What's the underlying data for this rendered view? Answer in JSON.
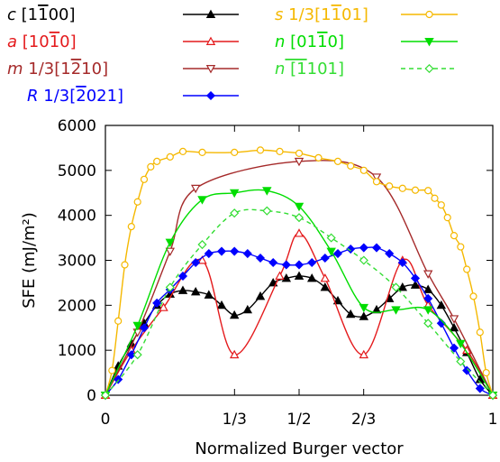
{
  "chart_data": {
    "type": "line",
    "xlabel": "Normalized Burger vector",
    "ylabel": "SFE (mJ/m²)",
    "xlim": [
      0,
      1
    ],
    "ylim": [
      0,
      6000
    ],
    "x_ticks": [
      0,
      0.3333,
      0.5,
      0.6667,
      1
    ],
    "x_tick_labels": [
      "0",
      "1/3",
      "1/2",
      "2/3",
      "1"
    ],
    "y_ticks": [
      0,
      1000,
      2000,
      3000,
      4000,
      5000,
      6000
    ],
    "y_tick_labels": [
      "0",
      "1000",
      "2000",
      "3000",
      "4000",
      "5000",
      "6000"
    ],
    "grid": false,
    "legend_position": "top",
    "series": [
      {
        "name": "c [1Ġ00]",
        "label_parts": [
          "c",
          " [1",
          "1",
          "00]"
        ],
        "overbar_index": 2,
        "color": "#000000",
        "marker": "filled-triangle-up",
        "dashed": false,
        "x": [
          0,
          0.033,
          0.067,
          0.1,
          0.133,
          0.167,
          0.2,
          0.233,
          0.267,
          0.3,
          0.333,
          0.367,
          0.4,
          0.433,
          0.467,
          0.5,
          0.533,
          0.567,
          0.6,
          0.633,
          0.667,
          0.7,
          0.733,
          0.767,
          0.8,
          0.833,
          0.867,
          0.9,
          0.933,
          0.967,
          1
        ],
        "y": [
          0,
          650,
          1150,
          1600,
          2000,
          2250,
          2330,
          2300,
          2230,
          2000,
          1780,
          1900,
          2200,
          2500,
          2600,
          2650,
          2600,
          2400,
          2100,
          1800,
          1750,
          1900,
          2150,
          2400,
          2450,
          2350,
          2000,
          1500,
          950,
          350,
          0
        ]
      },
      {
        "name": "a [10Ġ10]",
        "label_parts": [
          "a",
          " [10",
          "1",
          "0]"
        ],
        "overbar_index": 2,
        "color": "#e41a1c",
        "marker": "open-triangle-up",
        "dashed": false,
        "x": [
          0,
          0.067,
          0.15,
          0.25,
          0.333,
          0.45,
          0.5,
          0.567,
          0.667,
          0.767,
          0.833,
          0.933,
          1
        ],
        "y": [
          0,
          1000,
          1950,
          3000,
          900,
          2650,
          3600,
          2600,
          900,
          3000,
          2000,
          1000,
          0
        ]
      },
      {
        "name": "m 1/3[12Ġ10]",
        "label_parts": [
          "m",
          " 1/3[1",
          "2",
          "10]"
        ],
        "overbar_index": 2,
        "color": "#a52a2a",
        "marker": "open-triangle-down",
        "dashed": false,
        "x": [
          0,
          0.083,
          0.167,
          0.233,
          0.5,
          0.7,
          0.833,
          0.9,
          1
        ],
        "y": [
          0,
          1400,
          3200,
          4600,
          5200,
          4850,
          2700,
          1700,
          0
        ]
      },
      {
        "name": "R 1/3[‒2021]",
        "label_parts": [
          "R",
          " 1/3[",
          "2",
          "021]"
        ],
        "overbar_index": 2,
        "color": "#0000ff",
        "marker": "filled-diamond",
        "dashed": false,
        "x": [
          0,
          0.033,
          0.067,
          0.1,
          0.133,
          0.167,
          0.2,
          0.233,
          0.267,
          0.3,
          0.333,
          0.367,
          0.4,
          0.433,
          0.467,
          0.5,
          0.533,
          0.567,
          0.6,
          0.633,
          0.667,
          0.7,
          0.733,
          0.767,
          0.8,
          0.833,
          0.867,
          0.9,
          0.933,
          0.967,
          1
        ],
        "y": [
          0,
          350,
          900,
          1500,
          2050,
          2350,
          2650,
          2950,
          3150,
          3200,
          3200,
          3150,
          3050,
          2950,
          2900,
          2900,
          2950,
          3050,
          3150,
          3250,
          3280,
          3280,
          3150,
          2950,
          2600,
          2150,
          1600,
          1050,
          550,
          150,
          0
        ]
      },
      {
        "name": "s 1/3[11Ġ01]",
        "label_parts": [
          "s",
          " 1/3[1",
          "1",
          "01]"
        ],
        "overbar_index": 2,
        "color": "#f5b800",
        "marker": "open-circle",
        "dashed": false,
        "x": [
          0,
          0.017,
          0.033,
          0.05,
          0.067,
          0.083,
          0.1,
          0.117,
          0.133,
          0.167,
          0.2,
          0.25,
          0.333,
          0.4,
          0.45,
          0.5,
          0.55,
          0.6,
          0.633,
          0.667,
          0.7,
          0.733,
          0.767,
          0.8,
          0.833,
          0.85,
          0.867,
          0.883,
          0.9,
          0.917,
          0.933,
          0.95,
          0.967,
          0.983,
          1
        ],
        "y": [
          0,
          550,
          1650,
          2900,
          3750,
          4300,
          4800,
          5080,
          5200,
          5300,
          5420,
          5400,
          5400,
          5450,
          5420,
          5380,
          5280,
          5200,
          5100,
          5000,
          4750,
          4650,
          4600,
          4560,
          4550,
          4380,
          4230,
          3950,
          3550,
          3300,
          2800,
          2200,
          1400,
          500,
          0
        ]
      },
      {
        "name": "n [01Ġ10]",
        "label_parts": [
          "n",
          " [01",
          "1",
          "0]"
        ],
        "overbar_index": 2,
        "color": "#00dd00",
        "marker": "filled-triangle-down",
        "dashed": false,
        "x": [
          0,
          0.083,
          0.167,
          0.25,
          0.333,
          0.417,
          0.5,
          0.583,
          0.667,
          0.75,
          0.833,
          0.917,
          1
        ],
        "y": [
          0,
          1550,
          3400,
          4350,
          4500,
          4550,
          4200,
          3200,
          1950,
          1900,
          1900,
          1150,
          0
        ]
      },
      {
        "name": "n [11Ġ01]",
        "label_parts": [
          "n",
          " [1",
          "1",
          "01]"
        ],
        "overbar_index": 1,
        "color": "#33dd33",
        "marker": "open-diamond",
        "dashed": true,
        "x": [
          0,
          0.083,
          0.167,
          0.25,
          0.333,
          0.417,
          0.5,
          0.583,
          0.667,
          0.75,
          0.833,
          0.917,
          1
        ],
        "y": [
          0,
          900,
          2400,
          3350,
          4050,
          4100,
          3950,
          3500,
          3000,
          2400,
          1600,
          750,
          0
        ]
      }
    ]
  }
}
